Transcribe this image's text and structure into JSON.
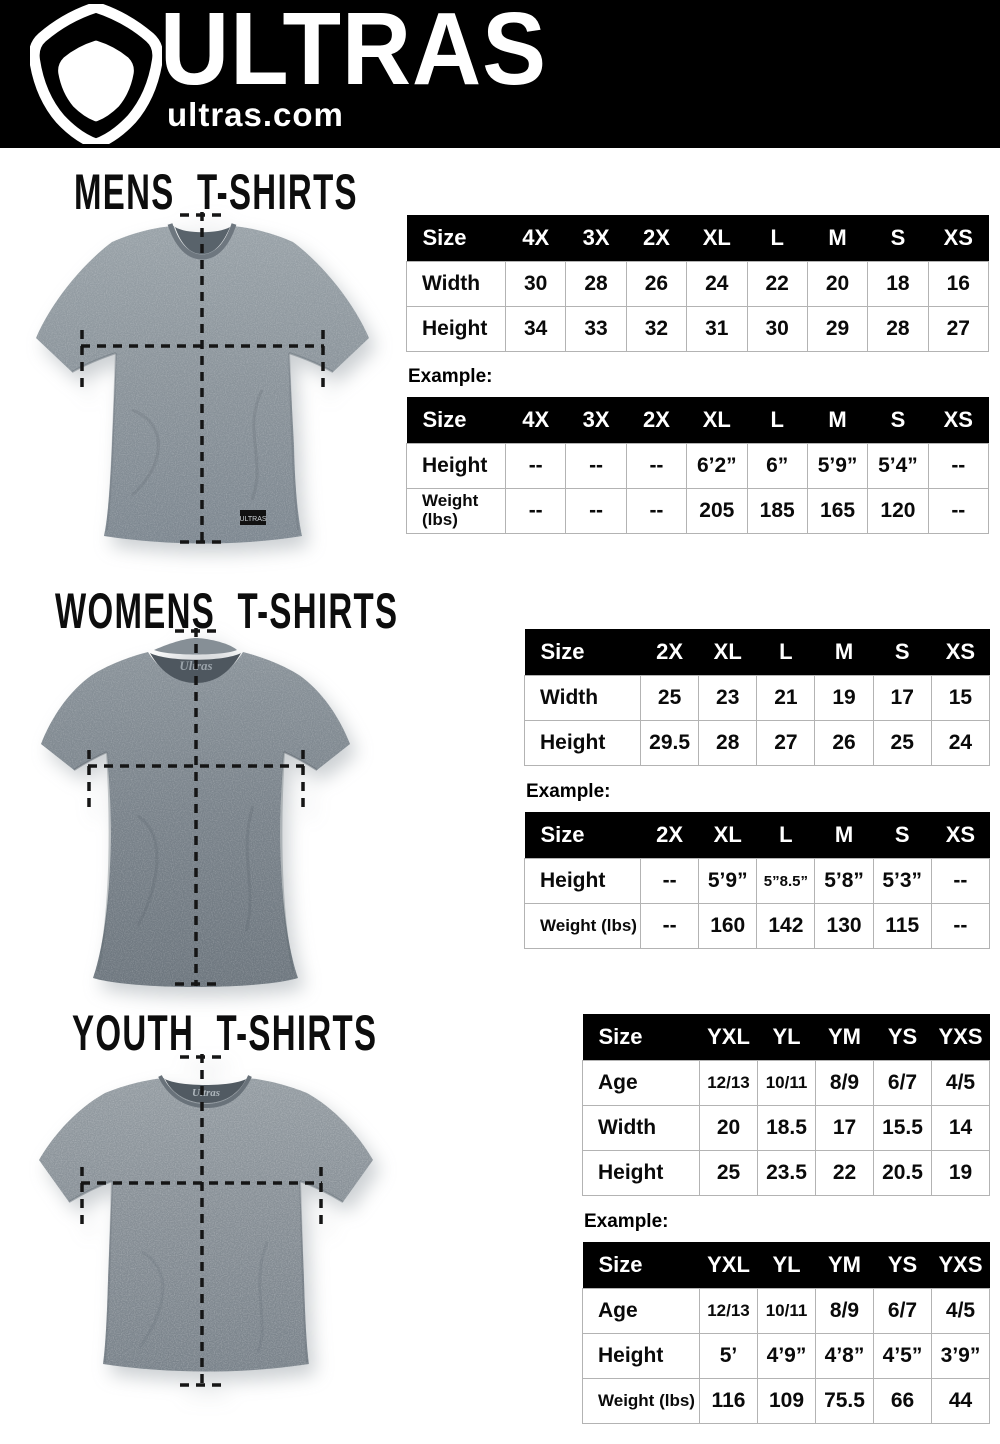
{
  "header": {
    "brand": "ULTRAS",
    "site": "ultras.com",
    "logo_icon": "pentagon-shield-icon"
  },
  "colors": {
    "header_bg": "#000000",
    "header_text": "#ffffff",
    "table_header_bg": "#000000",
    "table_header_text": "#ffffff",
    "table_border": "#b3b3b3",
    "page_bg": "#ffffff",
    "mens_shirt_gray": "#8a939a",
    "womens_shirt_gray": "#79828a",
    "youth_shirt_gray": "#868e95",
    "measure_line": "#151515"
  },
  "sections": [
    {
      "id": "mens",
      "title": "MENS T-SHIRTS",
      "example_label": "Example:",
      "size_table": {
        "header": [
          "Size",
          "4X",
          "3X",
          "2X",
          "XL",
          "L",
          "M",
          "S",
          "XS"
        ],
        "rows": [
          {
            "label": "Width",
            "values": [
              "30",
              "28",
              "26",
              "24",
              "22",
              "20",
              "18",
              "16"
            ]
          },
          {
            "label": "Height",
            "values": [
              "34",
              "33",
              "32",
              "31",
              "30",
              "29",
              "28",
              "27"
            ]
          }
        ]
      },
      "example_table": {
        "header": [
          "Size",
          "4X",
          "3X",
          "2X",
          "XL",
          "L",
          "M",
          "S",
          "XS"
        ],
        "rows": [
          {
            "label": "Height",
            "values": [
              "--",
              "--",
              "--",
              "6’2”",
              "6”",
              "5’9”",
              "5’4”",
              "--"
            ]
          },
          {
            "label": "Weight (lbs)",
            "values": [
              "--",
              "--",
              "--",
              "205",
              "185",
              "165",
              "120",
              "--"
            ]
          }
        ]
      }
    },
    {
      "id": "womens",
      "title": "WOMENS T-SHIRTS",
      "example_label": "Example:",
      "size_table": {
        "header": [
          "Size",
          "2X",
          "XL",
          "L",
          "M",
          "S",
          "XS"
        ],
        "rows": [
          {
            "label": "Width",
            "values": [
              "25",
              "23",
              "21",
              "19",
              "17",
              "15"
            ]
          },
          {
            "label": "Height",
            "values": [
              "29.5",
              "28",
              "27",
              "26",
              "25",
              "24"
            ]
          }
        ]
      },
      "example_table": {
        "header": [
          "Size",
          "2X",
          "XL",
          "L",
          "M",
          "S",
          "XS"
        ],
        "rows": [
          {
            "label": "Height",
            "values": [
              "--",
              "5’9”",
              "5”8.5”",
              "5’8”",
              "5’3”",
              "--"
            ]
          },
          {
            "label": "Weight (lbs)",
            "values": [
              "--",
              "160",
              "142",
              "130",
              "115",
              "--"
            ]
          }
        ]
      }
    },
    {
      "id": "youth",
      "title": "YOUTH T-SHIRTS",
      "example_label": "Example:",
      "size_table": {
        "header": [
          "Size",
          "YXL",
          "YL",
          "YM",
          "YS",
          "YXS"
        ],
        "rows": [
          {
            "label": "Age",
            "values": [
              "12/13",
              "10/11",
              "8/9",
              "6/7",
              "4/5"
            ]
          },
          {
            "label": "Width",
            "values": [
              "20",
              "18.5",
              "17",
              "15.5",
              "14"
            ]
          },
          {
            "label": "Height",
            "values": [
              "25",
              "23.5",
              "22",
              "20.5",
              "19"
            ]
          }
        ]
      },
      "example_table": {
        "header": [
          "Size",
          "YXL",
          "YL",
          "YM",
          "YS",
          "YXS"
        ],
        "rows": [
          {
            "label": "Age",
            "values": [
              "12/13",
              "10/11",
              "8/9",
              "6/7",
              "4/5"
            ]
          },
          {
            "label": "Height",
            "values": [
              "5’",
              "4’9”",
              "4’8”",
              "4’5”",
              "3’9”"
            ]
          },
          {
            "label": "Weight (lbs)",
            "values": [
              "116",
              "109",
              "75.5",
              "66",
              "44"
            ]
          }
        ]
      }
    }
  ]
}
